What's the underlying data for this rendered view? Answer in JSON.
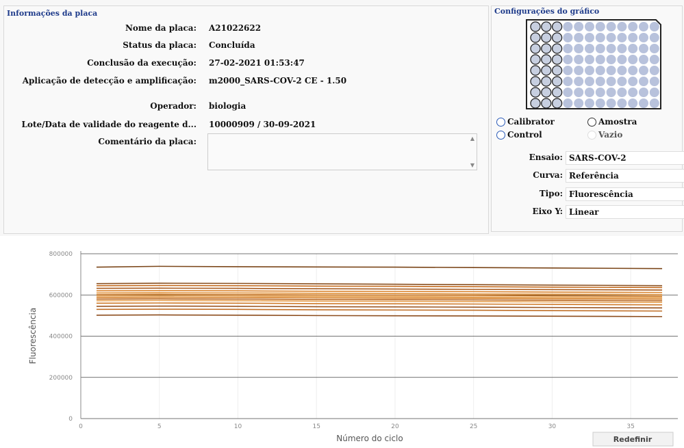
{
  "plate_info": {
    "title": "Informações da placa",
    "fields": [
      {
        "label": "Nome da placa:",
        "value": "A21022622"
      },
      {
        "label": "Status da placa:",
        "value": "Concluída"
      },
      {
        "label": "Conclusão da execução:",
        "value": "27-02-2021 01:53:47"
      },
      {
        "label": "Aplicação de detecção e amplificação:",
        "value": "m2000_SARS-COV-2 CE - 1.50"
      },
      {
        "label": "Operador:",
        "value": "biologia"
      },
      {
        "label": "Lote/Data de validade do reagente d...",
        "value": "10000909 / 30-09-2021"
      }
    ],
    "comment_label": "Comentário da placa:"
  },
  "graph_config": {
    "title": "Configurações do gráfico",
    "radios": [
      "Calibrator",
      "Amostra",
      "Control",
      "Vazio"
    ],
    "dropdowns": [
      {
        "label": "Ensaio:",
        "value": "SARS-COV-2"
      },
      {
        "label": "Curva:",
        "value": "Referência"
      },
      {
        "label": "Tipo:",
        "value": "Fluorescência"
      },
      {
        "label": "Eixo Y:",
        "value": "Linear"
      }
    ]
  },
  "chart_data": {
    "type": "line",
    "xlabel": "Número do ciclo",
    "ylabel": "Fluorescência",
    "x": [
      1,
      5,
      10,
      15,
      20,
      25,
      30,
      37
    ],
    "xlim": [
      0,
      38
    ],
    "xticks": [
      0,
      5,
      10,
      15,
      20,
      25,
      30,
      35
    ],
    "ylim": [
      0,
      800000
    ],
    "yticks": [
      0,
      200000,
      400000,
      600000,
      800000
    ],
    "grid": true,
    "series": [
      {
        "color": "#7a4518",
        "values": [
          735000,
          739000,
          737000,
          736000,
          735000,
          733000,
          731000,
          728000
        ]
      },
      {
        "color": "#8a5020",
        "values": [
          655000,
          657000,
          656000,
          654000,
          652000,
          650000,
          648000,
          645000
        ]
      },
      {
        "color": "#c46a1c",
        "values": [
          645000,
          646000,
          645000,
          643000,
          642000,
          640000,
          638000,
          636000
        ]
      },
      {
        "color": "#a85a1e",
        "values": [
          632000,
          633000,
          632000,
          630000,
          629000,
          627000,
          626000,
          624000
        ]
      },
      {
        "color": "#d9822b",
        "values": [
          620000,
          621000,
          620000,
          618000,
          617000,
          616000,
          614000,
          612000
        ]
      },
      {
        "color": "#e08f35",
        "values": [
          610000,
          611000,
          610000,
          608000,
          607000,
          605000,
          604000,
          602000
        ]
      },
      {
        "color": "#c9741f",
        "values": [
          602000,
          603000,
          602000,
          600000,
          599000,
          598000,
          596000,
          594000
        ]
      },
      {
        "color": "#e39a45",
        "values": [
          595000,
          596000,
          595000,
          593000,
          592000,
          590000,
          589000,
          587000
        ]
      },
      {
        "color": "#d47d25",
        "values": [
          588000,
          589000,
          588000,
          586000,
          585000,
          584000,
          582000,
          580000
        ]
      },
      {
        "color": "#b8651c",
        "values": [
          580000,
          581000,
          580000,
          578000,
          577000,
          576000,
          574000,
          572000
        ]
      },
      {
        "color": "#e6a050",
        "values": [
          572000,
          573000,
          572000,
          570000,
          569000,
          568000,
          566000,
          564000
        ]
      },
      {
        "color": "#cf7a28",
        "values": [
          560000,
          561000,
          560000,
          558000,
          557000,
          556000,
          554000,
          552000
        ]
      },
      {
        "color": "#9a5420",
        "values": [
          545000,
          546000,
          545000,
          543000,
          542000,
          541000,
          539000,
          537000
        ]
      },
      {
        "color": "#c07028",
        "values": [
          530000,
          531000,
          530000,
          528000,
          527000,
          526000,
          524000,
          522000
        ]
      },
      {
        "color": "#8c4c1c",
        "values": [
          502000,
          503000,
          502000,
          500000,
          499000,
          498000,
          497000,
          495000
        ]
      }
    ]
  },
  "reset_button": "Redefinir"
}
